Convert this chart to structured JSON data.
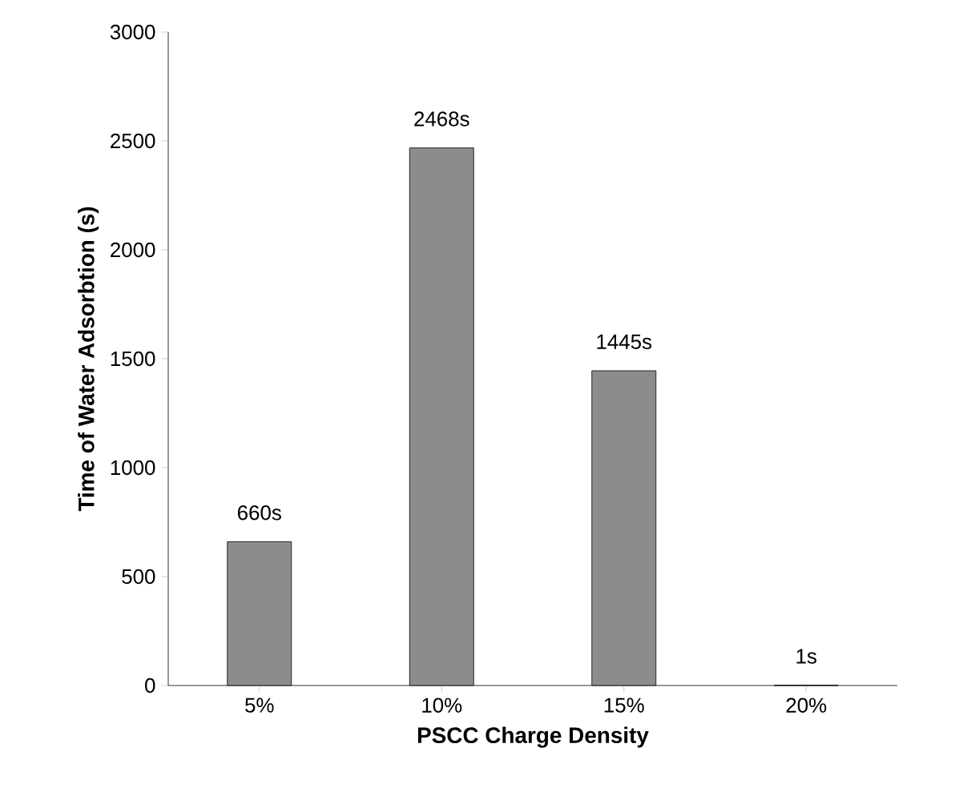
{
  "chart_data": {
    "type": "bar",
    "xlabel": "PSCC Charge Density",
    "ylabel": "Time of Water Adsorbtion (s)",
    "categories": [
      "5%",
      "10%",
      "15%",
      "20%"
    ],
    "values": [
      660,
      2468,
      1445,
      1
    ],
    "value_labels": [
      "660s",
      "2468s",
      "1445s",
      "1s"
    ],
    "color": "#8c8c8c",
    "ylim": [
      0,
      3000
    ],
    "yticks": [
      0,
      500,
      1000,
      1500,
      2000,
      2500,
      3000
    ]
  }
}
